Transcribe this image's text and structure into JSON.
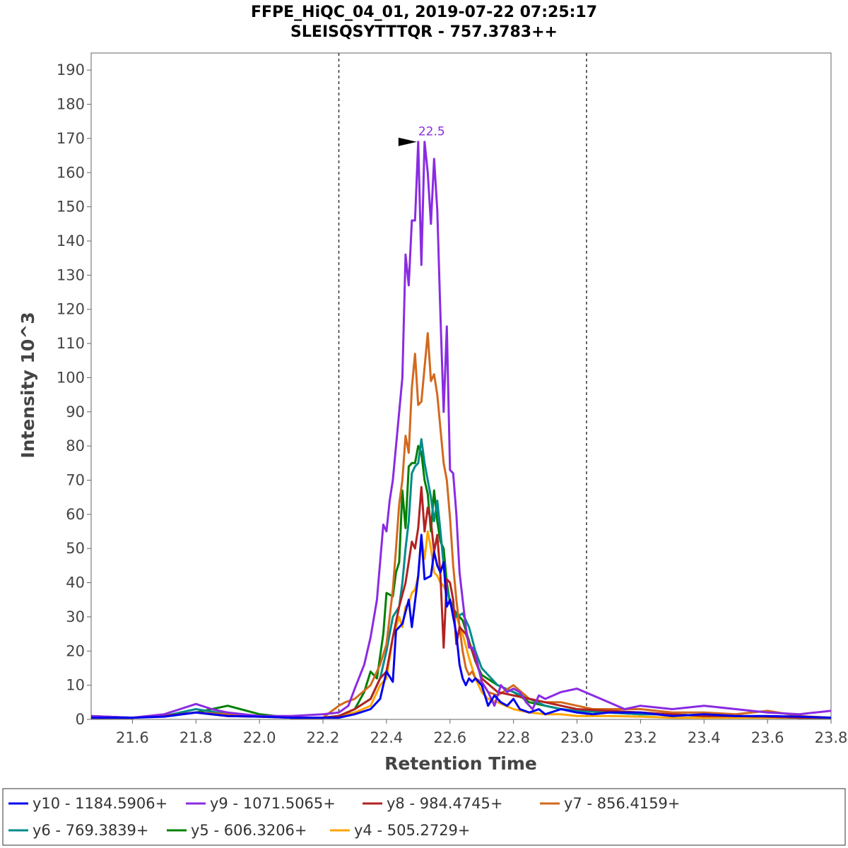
{
  "chart_data": {
    "type": "line",
    "title": "FFPE_HiQC_04_01, 2019-07-22 07:25:17",
    "subtitle": "SLEISQSYTTTQR - 757.3783++",
    "xlabel": "Retention Time",
    "ylabel": "Intensity 10^3",
    "xlim": [
      21.47,
      23.8
    ],
    "ylim": [
      0,
      195
    ],
    "xticks": [
      21.6,
      21.8,
      22.0,
      22.2,
      22.4,
      22.6,
      22.8,
      23.0,
      23.2,
      23.4,
      23.6,
      23.8
    ],
    "xtick_labels": [
      "21.6",
      "21.8",
      "22.0",
      "22.2",
      "22.4",
      "22.6",
      "22.8",
      "23.0",
      "23.2",
      "23.4",
      "23.6",
      "23.8"
    ],
    "yticks": [
      0,
      10,
      20,
      30,
      40,
      50,
      60,
      70,
      80,
      90,
      100,
      110,
      120,
      130,
      140,
      150,
      160,
      170,
      180,
      190
    ],
    "ytick_labels": [
      "0",
      "10",
      "20",
      "30",
      "40",
      "50",
      "60",
      "70",
      "80",
      "90",
      "100",
      "110",
      "120",
      "130",
      "140",
      "150",
      "160",
      "170",
      "180",
      "190"
    ],
    "boundaries": [
      22.25,
      23.03
    ],
    "annotation": {
      "text": "22.5",
      "x": 22.5,
      "y": 169,
      "color": "#8a2be2"
    },
    "grid": false,
    "legend_position": "bottom",
    "series": [
      {
        "name": "y10 - 1184.5906+",
        "color": "#0000ee",
        "x": [
          21.47,
          21.6,
          21.7,
          21.8,
          21.9,
          22.0,
          22.1,
          22.2,
          22.25,
          22.3,
          22.35,
          22.38,
          22.4,
          22.42,
          22.43,
          22.45,
          22.47,
          22.48,
          22.5,
          22.51,
          22.52,
          22.54,
          22.55,
          22.56,
          22.57,
          22.58,
          22.59,
          22.6,
          22.61,
          22.62,
          22.63,
          22.64,
          22.65,
          22.66,
          22.67,
          22.68,
          22.7,
          22.72,
          22.74,
          22.76,
          22.78,
          22.8,
          22.82,
          22.85,
          22.88,
          22.9,
          22.95,
          23.0,
          23.05,
          23.1,
          23.2,
          23.3,
          23.4,
          23.5,
          23.6,
          23.7,
          23.8
        ],
        "y": [
          0.5,
          0.5,
          0.8,
          2,
          1,
          0.8,
          0.5,
          0.5,
          0.5,
          1.5,
          3,
          6,
          14,
          11,
          26,
          28,
          35,
          27,
          42,
          54,
          41,
          42,
          49,
          45,
          43,
          46,
          33,
          35,
          30,
          25,
          16,
          12,
          10,
          12,
          11,
          12,
          10,
          4,
          7,
          5,
          4,
          6,
          3,
          2,
          3,
          1.5,
          3,
          2,
          1.5,
          2,
          2,
          1,
          1.5,
          1,
          1,
          0.8,
          0.5
        ]
      },
      {
        "name": "y9 - 1071.5065+",
        "color": "#8a2be2",
        "x": [
          21.47,
          21.6,
          21.7,
          21.75,
          21.8,
          21.85,
          21.9,
          22.0,
          22.1,
          22.2,
          22.25,
          22.28,
          22.3,
          22.33,
          22.35,
          22.37,
          22.39,
          22.4,
          22.41,
          22.42,
          22.43,
          22.44,
          22.45,
          22.46,
          22.47,
          22.48,
          22.49,
          22.5,
          22.51,
          22.52,
          22.53,
          22.54,
          22.55,
          22.56,
          22.57,
          22.58,
          22.59,
          22.6,
          22.61,
          22.62,
          22.63,
          22.64,
          22.65,
          22.66,
          22.67,
          22.68,
          22.69,
          22.7,
          22.72,
          22.74,
          22.76,
          22.78,
          22.8,
          22.82,
          22.84,
          22.86,
          22.88,
          22.9,
          22.95,
          23.0,
          23.05,
          23.1,
          23.15,
          23.2,
          23.3,
          23.4,
          23.5,
          23.6,
          23.7,
          23.8
        ],
        "y": [
          1,
          0.5,
          1.5,
          3,
          4.5,
          3,
          2,
          1,
          1,
          1.5,
          2,
          4,
          9,
          16,
          24,
          35,
          57,
          55,
          64,
          70,
          80,
          90,
          100,
          136,
          127,
          146,
          146,
          169,
          133,
          169,
          160,
          145,
          164,
          149,
          118,
          90,
          115,
          73,
          72,
          60,
          43,
          35,
          27,
          21,
          21,
          19,
          15,
          11,
          8,
          4,
          10,
          8,
          9,
          8,
          5,
          3,
          7,
          6,
          8,
          9,
          7,
          5,
          3,
          4,
          3,
          4,
          3,
          2,
          1.5,
          2.5
        ]
      },
      {
        "name": "y8 - 984.4745+",
        "color": "#b22222",
        "x": [
          21.47,
          21.6,
          21.7,
          21.8,
          21.9,
          22.0,
          22.1,
          22.2,
          22.25,
          22.3,
          22.35,
          22.38,
          22.4,
          22.42,
          22.44,
          22.46,
          22.48,
          22.49,
          22.5,
          22.51,
          22.52,
          22.53,
          22.54,
          22.55,
          22.56,
          22.57,
          22.58,
          22.59,
          22.6,
          22.61,
          22.62,
          22.63,
          22.65,
          22.67,
          22.7,
          22.75,
          22.8,
          22.85,
          22.9,
          22.95,
          23.0,
          23.1,
          23.2,
          23.3,
          23.4,
          23.5,
          23.6,
          23.7,
          23.8
        ],
        "y": [
          0.5,
          0.5,
          1,
          2,
          1,
          0.8,
          0.5,
          0.5,
          1,
          3,
          6,
          12,
          14,
          24,
          33,
          40,
          52,
          50,
          56,
          68,
          55,
          62,
          58,
          49,
          54,
          42,
          21,
          41,
          40,
          35,
          22,
          27,
          25,
          20,
          12,
          8,
          7,
          6,
          5,
          4,
          3,
          2.5,
          2,
          1.5,
          1,
          1,
          0.8,
          0.5,
          0.5
        ]
      },
      {
        "name": "y7 - 856.4159+",
        "color": "#d2691e",
        "x": [
          21.47,
          21.6,
          21.7,
          21.8,
          21.9,
          22.0,
          22.1,
          22.2,
          22.25,
          22.27,
          22.3,
          22.35,
          22.38,
          22.4,
          22.42,
          22.43,
          22.44,
          22.45,
          22.46,
          22.47,
          22.48,
          22.49,
          22.5,
          22.51,
          22.52,
          22.53,
          22.54,
          22.55,
          22.56,
          22.57,
          22.58,
          22.59,
          22.6,
          22.61,
          22.62,
          22.63,
          22.64,
          22.65,
          22.66,
          22.67,
          22.68,
          22.7,
          22.72,
          22.75,
          22.8,
          22.85,
          22.9,
          22.95,
          23.0,
          23.05,
          23.1,
          23.2,
          23.3,
          23.4,
          23.5,
          23.6,
          23.7,
          23.8
        ],
        "y": [
          0.5,
          0.5,
          1,
          2,
          1.5,
          1,
          0.5,
          0.5,
          4,
          5,
          6,
          10,
          16,
          22,
          38,
          50,
          63,
          70,
          83,
          78,
          97,
          107,
          92,
          93,
          103,
          113,
          99,
          101,
          95,
          85,
          75,
          70,
          59,
          45,
          35,
          27,
          20,
          15,
          13,
          14,
          12,
          11,
          8,
          7,
          10,
          6,
          5,
          5,
          4,
          3,
          3,
          3,
          2,
          2,
          1.5,
          2.5,
          1,
          0.5
        ]
      },
      {
        "name": "y6 - 769.3839+",
        "color": "#008b8b",
        "x": [
          21.47,
          21.6,
          21.7,
          21.8,
          21.9,
          22.0,
          22.1,
          22.2,
          22.25,
          22.3,
          22.35,
          22.38,
          22.4,
          22.42,
          22.44,
          22.45,
          22.46,
          22.47,
          22.48,
          22.49,
          22.5,
          22.51,
          22.52,
          22.53,
          22.54,
          22.55,
          22.56,
          22.57,
          22.58,
          22.59,
          22.6,
          22.62,
          22.64,
          22.66,
          22.68,
          22.7,
          22.75,
          22.8,
          22.85,
          22.9,
          22.95,
          23.0,
          23.1,
          23.2,
          23.3,
          23.4,
          23.5,
          23.6,
          23.7,
          23.8
        ],
        "y": [
          1,
          0.5,
          1,
          3,
          1.5,
          1,
          0.5,
          0.5,
          1,
          3,
          6,
          12,
          20,
          30,
          33,
          40,
          50,
          58,
          72,
          74,
          75,
          82,
          75,
          70,
          65,
          58,
          64,
          55,
          45,
          38,
          35,
          30,
          31,
          27,
          20,
          15,
          10,
          8,
          6,
          4,
          3,
          2.5,
          2,
          1.5,
          1.5,
          1,
          1,
          0.8,
          0.5,
          0.5
        ]
      },
      {
        "name": "y5 - 606.3206+",
        "color": "#008000",
        "x": [
          21.47,
          21.6,
          21.7,
          21.8,
          21.85,
          21.9,
          22.0,
          22.1,
          22.2,
          22.25,
          22.3,
          22.33,
          22.35,
          22.37,
          22.39,
          22.4,
          22.42,
          22.43,
          22.44,
          22.45,
          22.46,
          22.47,
          22.48,
          22.49,
          22.5,
          22.51,
          22.52,
          22.53,
          22.54,
          22.55,
          22.56,
          22.57,
          22.58,
          22.59,
          22.6,
          22.62,
          22.64,
          22.66,
          22.68,
          22.7,
          22.75,
          22.8,
          22.85,
          22.9,
          22.95,
          23.0,
          23.1,
          23.2,
          23.3,
          23.4,
          23.5,
          23.6,
          23.7,
          23.8
        ],
        "y": [
          0.5,
          0.5,
          1,
          2,
          3,
          4,
          1.5,
          0.5,
          0.5,
          1,
          3,
          8,
          14,
          12,
          25,
          37,
          36,
          43,
          46,
          67,
          56,
          74,
          75,
          75,
          80,
          78,
          70,
          66,
          55,
          67,
          58,
          52,
          50,
          40,
          34,
          31,
          29,
          23,
          17,
          13,
          10,
          8,
          5,
          4,
          3,
          2.5,
          2,
          1.5,
          1.5,
          1,
          1,
          0.8,
          0.5,
          0.5
        ]
      },
      {
        "name": "y4 - 505.2729+",
        "color": "#ffa500",
        "x": [
          21.47,
          21.6,
          21.7,
          21.8,
          21.9,
          22.0,
          22.1,
          22.2,
          22.25,
          22.3,
          22.35,
          22.38,
          22.4,
          22.42,
          22.44,
          22.45,
          22.46,
          22.47,
          22.48,
          22.49,
          22.5,
          22.51,
          22.52,
          22.53,
          22.54,
          22.55,
          22.56,
          22.57,
          22.58,
          22.6,
          22.62,
          22.64,
          22.66,
          22.68,
          22.7,
          22.72,
          22.75,
          22.8,
          22.85,
          22.9,
          22.95,
          23.0,
          23.1,
          23.2,
          23.3,
          23.4,
          23.5,
          23.6,
          23.7,
          23.8
        ],
        "y": [
          0.5,
          0.5,
          1,
          2,
          1,
          0.8,
          0.5,
          0.5,
          1,
          2,
          4,
          10,
          12,
          24,
          30,
          27,
          33,
          34,
          37,
          38,
          42,
          53,
          47,
          55,
          50,
          43,
          42,
          40,
          39,
          35,
          30,
          25,
          18,
          12,
          8,
          6,
          5,
          3,
          2,
          1.5,
          1.5,
          1,
          1,
          0.8,
          0.5,
          0.5,
          0.5,
          0.5,
          0.5,
          0.5
        ]
      }
    ]
  }
}
